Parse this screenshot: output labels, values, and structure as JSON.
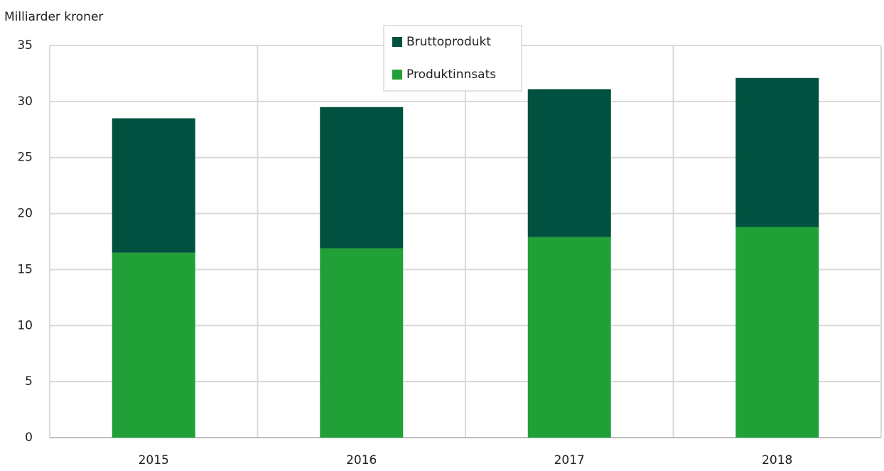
{
  "chart_data": {
    "type": "stacked_bar",
    "y_label": "Milliarder kroner",
    "categories": [
      "2015",
      "2016",
      "2017",
      "2018"
    ],
    "series": [
      {
        "name": "Produktinnsats",
        "color": "#21a038",
        "values": [
          16.5,
          16.9,
          17.9,
          18.8
        ]
      },
      {
        "name": "Bruttoprodukt",
        "color": "#00513f",
        "values": [
          12.0,
          12.6,
          13.2,
          13.3
        ]
      }
    ],
    "ylim": [
      0,
      35
    ],
    "yticks": [
      0,
      5,
      10,
      15,
      20,
      25,
      30,
      35
    ],
    "grid": true
  }
}
